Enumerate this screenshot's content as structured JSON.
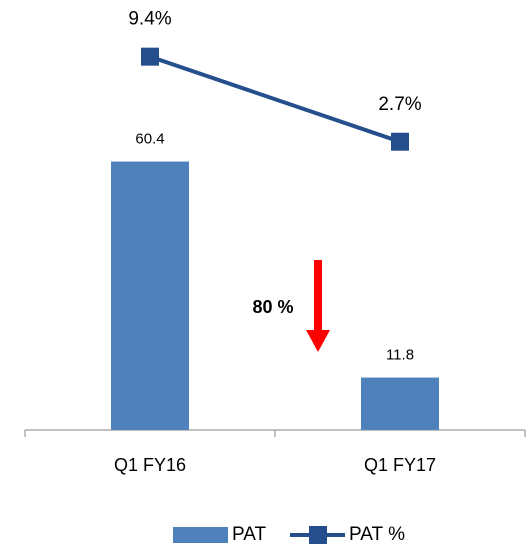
{
  "chart_data": {
    "type": "bar_line",
    "categories": [
      "Q1 FY16",
      "Q1 FY17"
    ],
    "series": [
      {
        "name": "PAT",
        "type": "bar",
        "color": "#4f81bd",
        "values": [
          60.4,
          11.8
        ]
      },
      {
        "name": "PAT %",
        "type": "line",
        "axis": "y2",
        "color": "#254f8c",
        "values": [
          9.4,
          2.7
        ],
        "value_labels": [
          "9.4%",
          "2.7%"
        ]
      }
    ],
    "ylim": [
      0,
      90
    ],
    "y2lim": [
      -20,
      11.5
    ],
    "annotation": "80 %",
    "legend": "bottom"
  }
}
